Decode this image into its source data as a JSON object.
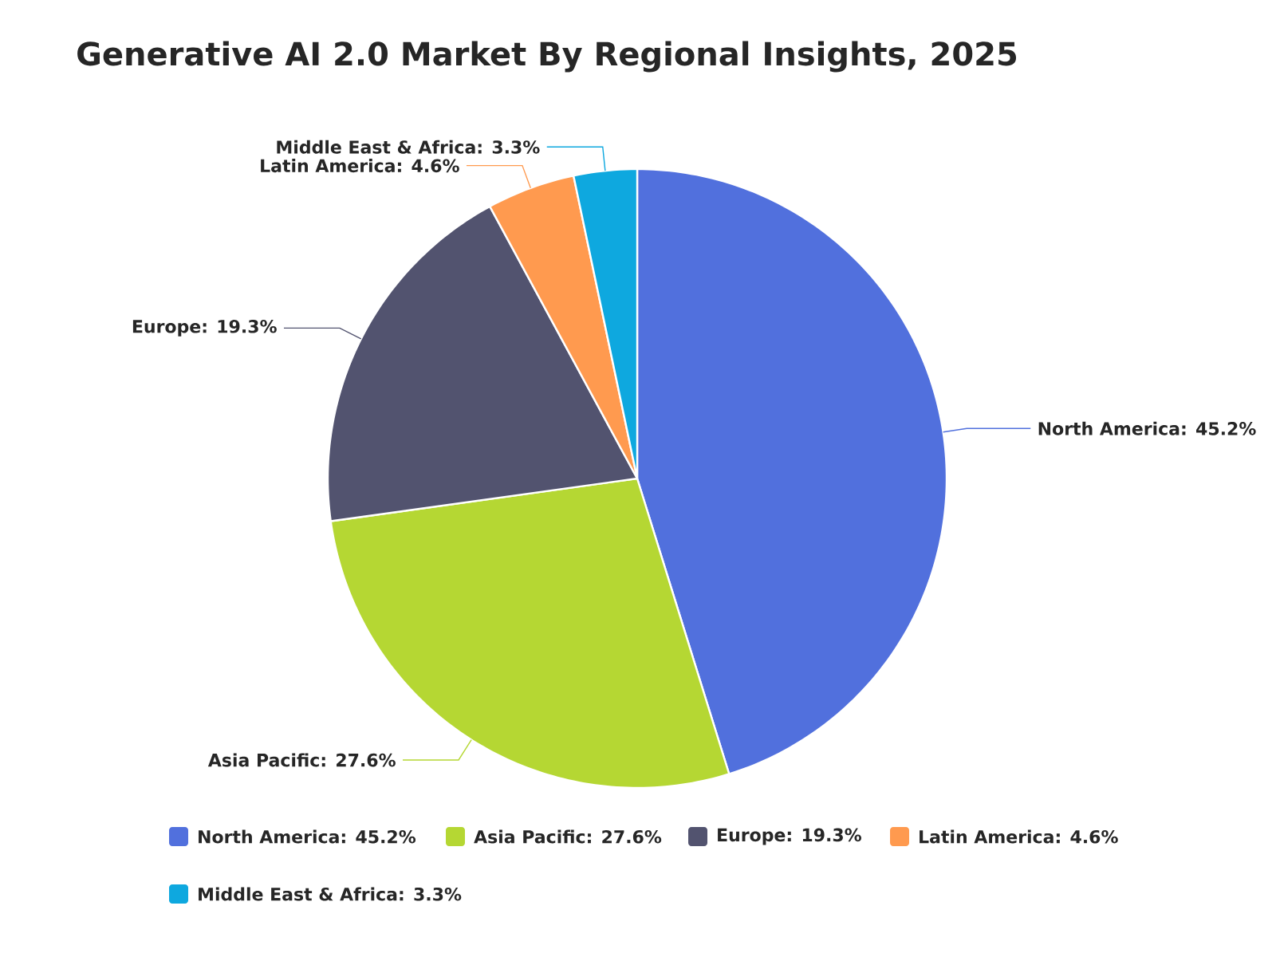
{
  "chart_data": {
    "type": "pie",
    "title": "Generative AI 2.0 Market By Regional Insights, 2025",
    "categories": [
      "North America: 45.2%",
      "Asia Pacific: 27.6%",
      "Europe: 19.3%",
      "Latin America: 4.6%",
      "Middle East & Africa: 3.3%"
    ],
    "values": [
      45.2,
      27.6,
      19.3,
      4.6,
      3.3
    ],
    "colors": [
      "#5170dd",
      "#b5d733",
      "#52536f",
      "#ff9a4f",
      "#0ea8df"
    ],
    "legend": "bottom"
  }
}
